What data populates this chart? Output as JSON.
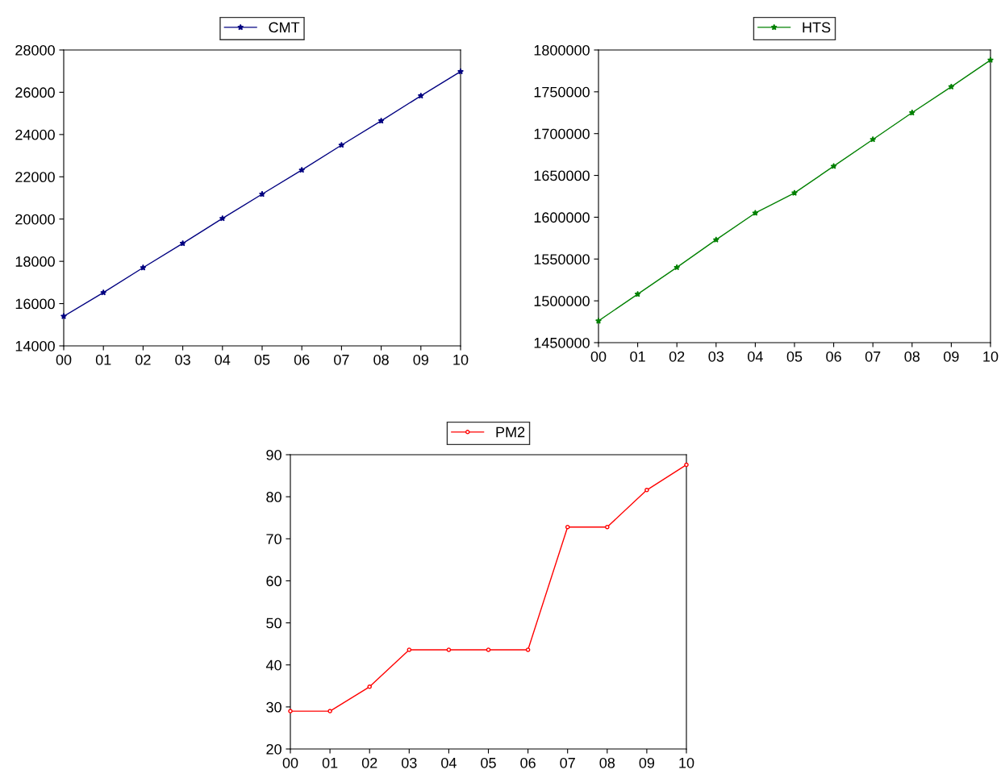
{
  "chart_data": [
    {
      "type": "line",
      "categories": [
        "00",
        "01",
        "02",
        "03",
        "04",
        "05",
        "06",
        "07",
        "08",
        "09",
        "10"
      ],
      "series": [
        {
          "name": "CMT",
          "color": "#000080",
          "values": [
            15400,
            16520,
            17700,
            18850,
            20030,
            21180,
            22320,
            23500,
            24650,
            25830,
            26980
          ]
        }
      ],
      "ylim": [
        14000,
        28000
      ],
      "yticks": [
        14000,
        16000,
        18000,
        20000,
        22000,
        24000,
        26000,
        28000
      ],
      "marker": "star",
      "legend": "top",
      "grid": false
    },
    {
      "type": "line",
      "categories": [
        "00",
        "01",
        "02",
        "03",
        "04",
        "05",
        "06",
        "07",
        "08",
        "09",
        "10"
      ],
      "series": [
        {
          "name": "HTS",
          "color": "#008000",
          "values": [
            1476000,
            1508000,
            1540000,
            1573000,
            1605000,
            1629000,
            1661000,
            1693000,
            1725000,
            1756000,
            1788000
          ]
        }
      ],
      "ylim": [
        1450000,
        1800000
      ],
      "yticks": [
        1450000,
        1500000,
        1550000,
        1600000,
        1650000,
        1700000,
        1750000,
        1800000
      ],
      "marker": "star",
      "legend": "top",
      "grid": false
    },
    {
      "type": "line",
      "categories": [
        "00",
        "01",
        "02",
        "03",
        "04",
        "05",
        "06",
        "07",
        "08",
        "09",
        "10"
      ],
      "series": [
        {
          "name": "PM2",
          "color": "#ff0000",
          "values": [
            29.0,
            29.0,
            34.8,
            43.6,
            43.6,
            43.6,
            43.6,
            72.8,
            72.8,
            81.6,
            87.6
          ]
        }
      ],
      "ylim": [
        20,
        90
      ],
      "yticks": [
        20,
        30,
        40,
        50,
        60,
        70,
        80,
        90
      ],
      "marker": "circle",
      "legend": "top",
      "grid": false
    }
  ]
}
